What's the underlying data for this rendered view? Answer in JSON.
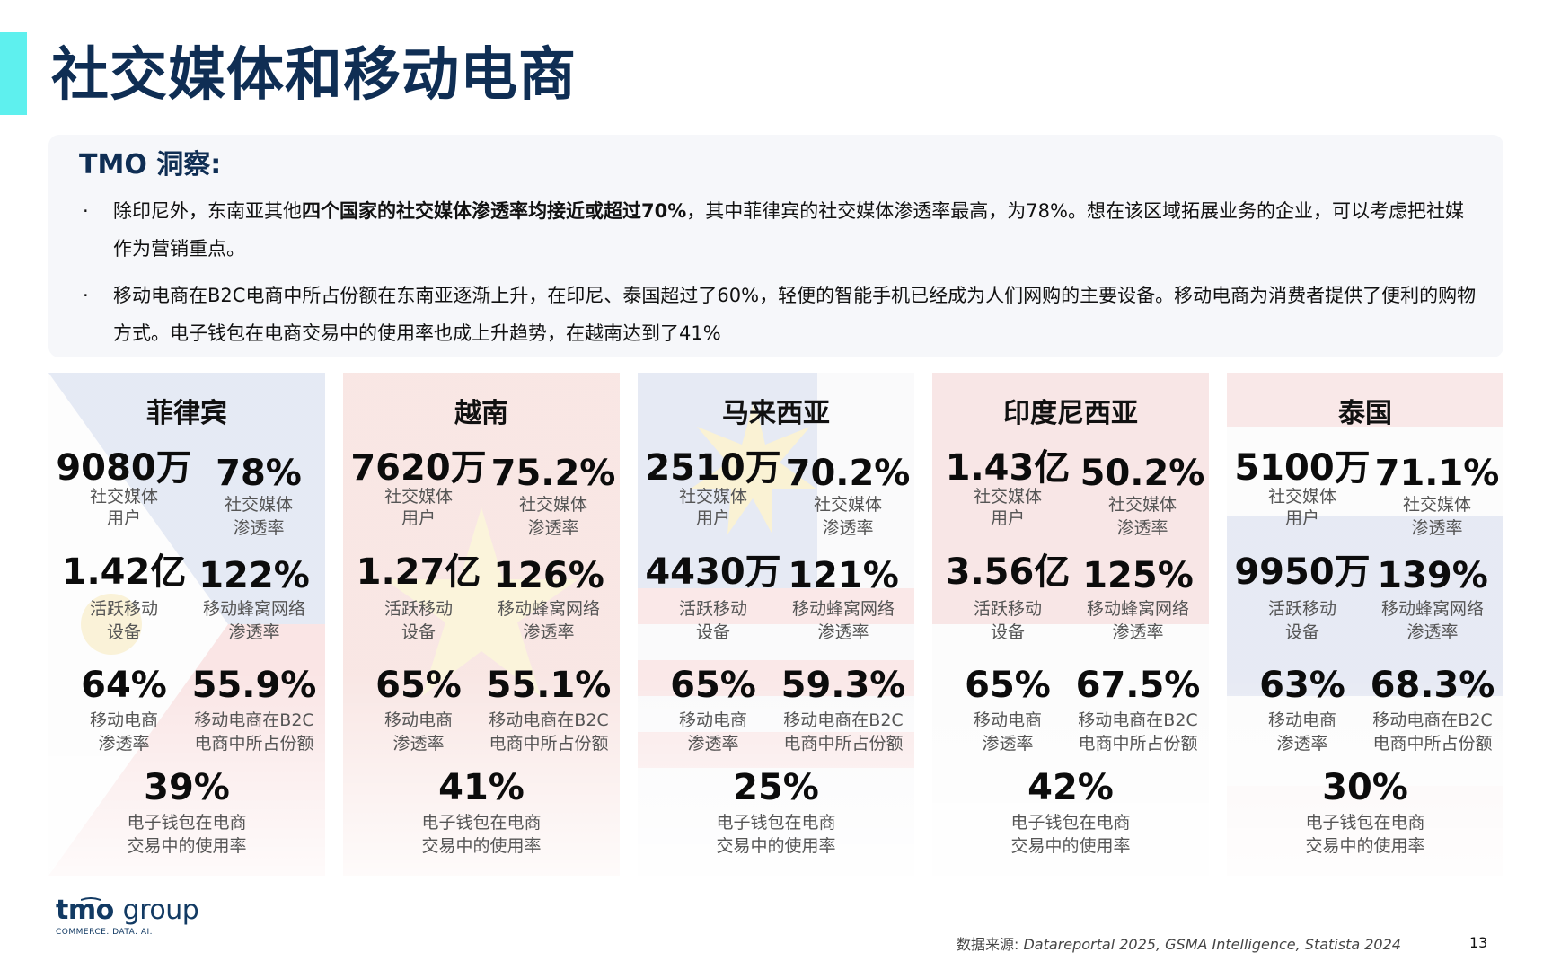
{
  "title": "社交媒体和移动电商",
  "insight": {
    "heading": "TMO 洞察:",
    "bullet_marker": "·",
    "bullets": [
      {
        "before": "除印尼外，东南亚其他",
        "bold": "四个国家的社交媒体渗透率均接近或超过70%",
        "after": "，其中菲律宾的社交媒体渗透率最高，为78%。想在该区域拓展业务的企业，可以考虑把社媒作为营销重点。"
      },
      {
        "before": "移动电商在B2C电商中所占份额在东南亚逐渐上升，在印尼、泰国超过了60%，轻便的智能手机已经成为人们网购的主要设备。移动电商为消费者提供了便利的购物方式。电子钱包在电商交易中的使用率也成上升趋势，在越南达到了41%",
        "bold": "",
        "after": ""
      }
    ]
  },
  "labels": {
    "social_users": "社交媒体\n用户",
    "social_rate": "社交媒体\n渗透率",
    "active_devices": "活跃移动\n设备",
    "cellular_rate": "移动蜂窝网络\n渗透率",
    "mcommerce_rate": "移动电商\n渗透率",
    "mcommerce_share": "移动电商在B2C\n电商中所占份额",
    "ewallet_rate": "电子钱包在电商\n交易中的使用率"
  },
  "countries": [
    {
      "name": "菲律宾",
      "flag": "philippines",
      "social_users": "9080万",
      "social_rate": "78%",
      "active_devices": "1.42亿",
      "cellular_rate": "122%",
      "mcommerce_rate": "64%",
      "mcommerce_share": "55.9%",
      "ewallet_rate": "39%"
    },
    {
      "name": "越南",
      "flag": "vietnam",
      "social_users": "7620万",
      "social_rate": "75.2%",
      "active_devices": "1.27亿",
      "cellular_rate": "126%",
      "mcommerce_rate": "65%",
      "mcommerce_share": "55.1%",
      "ewallet_rate": "41%"
    },
    {
      "name": "马来西亚",
      "flag": "malaysia",
      "social_users": "2510万",
      "social_rate": "70.2%",
      "active_devices": "4430万",
      "cellular_rate": "121%",
      "mcommerce_rate": "65%",
      "mcommerce_share": "59.3%",
      "ewallet_rate": "25%"
    },
    {
      "name": "印度尼西亚",
      "flag": "indonesia",
      "social_users": "1.43亿",
      "social_rate": "50.2%",
      "active_devices": "3.56亿",
      "cellular_rate": "125%",
      "mcommerce_rate": "65%",
      "mcommerce_share": "67.5%",
      "ewallet_rate": "42%"
    },
    {
      "name": "泰国",
      "flag": "thailand",
      "social_users": "5100万",
      "social_rate": "71.1%",
      "active_devices": "9950万",
      "cellular_rate": "139%",
      "mcommerce_rate": "63%",
      "mcommerce_share": "68.3%",
      "ewallet_rate": "30%"
    }
  ],
  "logo": {
    "brand": "tmo",
    "group": "group",
    "tagline": "COMMERCE. DATA. AI."
  },
  "source": {
    "prefix": "数据来源: ",
    "text": "Datareportal 2025, GSMA Intelligence, Statista 2024"
  },
  "page_number": "13",
  "colors": {
    "title": "#0f2e54",
    "accent": "#5ef0ee",
    "insight_bg": "#f6f7fa"
  }
}
